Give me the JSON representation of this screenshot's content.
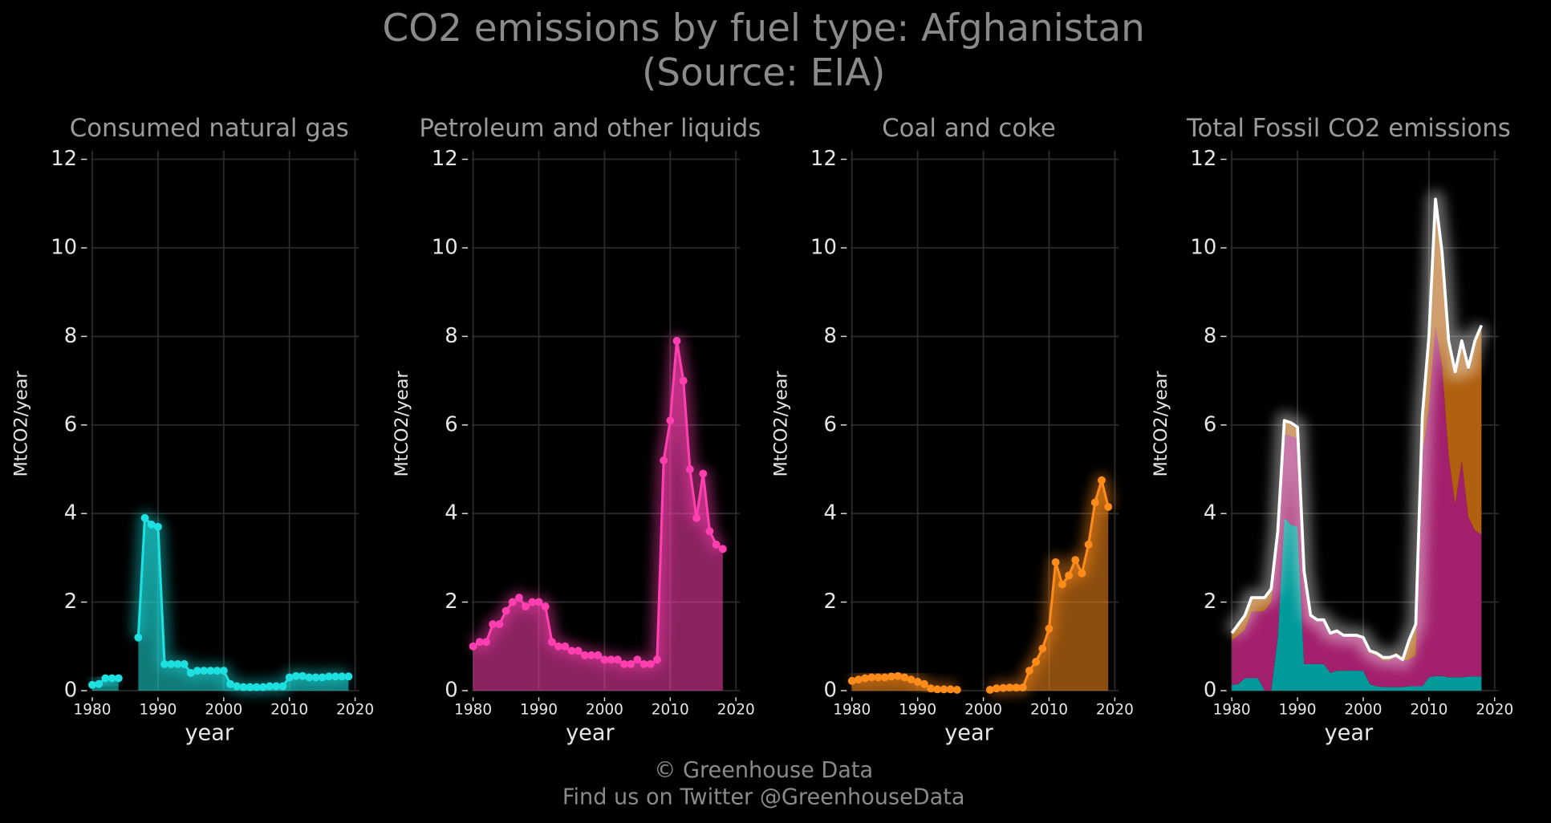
{
  "title": "CO2 emissions by fuel type: Afghanistan",
  "subtitle": "(Source: EIA)",
  "footer": [
    "© Greenhouse Data",
    "Find us on Twitter @GreenhouseData"
  ],
  "chart_data": [
    {
      "type": "area_line",
      "title": "Consumed natural gas",
      "xlabel": "year",
      "ylabel": "MtCO2/year",
      "color": "#1de0e0",
      "x": [
        1980,
        1981,
        1982,
        1983,
        1984,
        1985,
        1986,
        1987,
        1988,
        1989,
        1990,
        1991,
        1992,
        1993,
        1994,
        1995,
        1996,
        1997,
        1998,
        1999,
        2000,
        2001,
        2002,
        2003,
        2004,
        2005,
        2006,
        2007,
        2008,
        2009,
        2010,
        2011,
        2012,
        2013,
        2014,
        2015,
        2016,
        2017,
        2018,
        2019
      ],
      "values": [
        0.13,
        0.15,
        0.28,
        0.28,
        0.28,
        null,
        null,
        1.2,
        3.9,
        3.75,
        3.7,
        0.6,
        0.6,
        0.6,
        0.6,
        0.4,
        0.45,
        0.45,
        0.45,
        0.45,
        0.45,
        0.15,
        0.1,
        0.08,
        0.08,
        0.08,
        0.08,
        0.1,
        0.1,
        0.1,
        0.3,
        0.33,
        0.33,
        0.3,
        0.3,
        0.3,
        0.32,
        0.32,
        0.32,
        0.32
      ],
      "xlim": [
        1978,
        2020.6
      ],
      "xticks": [
        1980,
        1990,
        2000,
        2010,
        2020
      ],
      "ylim": [
        -0.15,
        12.2
      ],
      "yticks": [
        0,
        2,
        4,
        6,
        8,
        10,
        12
      ],
      "grid": true
    },
    {
      "type": "area_line",
      "title": "Petroleum and other liquids",
      "xlabel": "year",
      "ylabel": "MtCO2/year",
      "color": "#ff3fb0",
      "x": [
        1980,
        1981,
        1982,
        1983,
        1984,
        1985,
        1986,
        1987,
        1988,
        1989,
        1990,
        1991,
        1992,
        1993,
        1994,
        1995,
        1996,
        1997,
        1998,
        1999,
        2000,
        2001,
        2002,
        2003,
        2004,
        2005,
        2006,
        2007,
        2008,
        2009,
        2010,
        2011,
        2012,
        2013,
        2014,
        2015,
        2016,
        2017,
        2018
      ],
      "values": [
        1.0,
        1.1,
        1.1,
        1.5,
        1.5,
        1.8,
        2.0,
        2.1,
        1.9,
        2.0,
        2.0,
        1.9,
        1.1,
        1.0,
        1.0,
        0.9,
        0.9,
        0.8,
        0.8,
        0.8,
        0.7,
        0.7,
        0.7,
        0.6,
        0.6,
        0.7,
        0.6,
        0.6,
        0.7,
        5.2,
        6.1,
        7.9,
        7.0,
        5.0,
        3.9,
        4.9,
        3.6,
        3.3,
        3.2
      ],
      "xlim": [
        1978,
        2020.6
      ],
      "xticks": [
        1980,
        1990,
        2000,
        2010,
        2020
      ],
      "ylim": [
        -0.15,
        12.2
      ],
      "yticks": [
        0,
        2,
        4,
        6,
        8,
        10,
        12
      ],
      "grid": true
    },
    {
      "type": "area_line",
      "title": "Coal and coke",
      "xlabel": "year",
      "ylabel": "MtCO2/year",
      "color": "#ff8c1a",
      "x": [
        1980,
        1981,
        1982,
        1983,
        1984,
        1985,
        1986,
        1987,
        1988,
        1989,
        1990,
        1991,
        1992,
        1993,
        1994,
        1995,
        1996,
        1997,
        1998,
        1999,
        2000,
        2001,
        2002,
        2003,
        2004,
        2005,
        2006,
        2007,
        2008,
        2009,
        2010,
        2011,
        2012,
        2013,
        2014,
        2015,
        2016,
        2017,
        2018,
        2019
      ],
      "values": [
        0.22,
        0.25,
        0.28,
        0.3,
        0.3,
        0.3,
        0.32,
        0.33,
        0.3,
        0.25,
        0.2,
        0.15,
        0.05,
        0.03,
        0.03,
        0.03,
        0.02,
        null,
        null,
        null,
        null,
        0.02,
        0.05,
        0.06,
        0.07,
        0.07,
        0.07,
        0.45,
        0.65,
        0.95,
        1.4,
        2.9,
        2.4,
        2.6,
        2.95,
        2.65,
        3.3,
        4.25,
        4.75,
        4.15
      ],
      "xlim": [
        1978,
        2020.6
      ],
      "xticks": [
        1980,
        1990,
        2000,
        2010,
        2020
      ],
      "ylim": [
        -0.15,
        12.2
      ],
      "yticks": [
        0,
        2,
        4,
        6,
        8,
        10,
        12
      ],
      "grid": true
    },
    {
      "type": "stacked_total",
      "title": "Total Fossil CO2 emissions",
      "xlabel": "year",
      "ylabel": "MtCO2/year",
      "color": "#ffffff",
      "area_colors": [
        "#009a9a",
        "#a3206d",
        "#b0600f"
      ],
      "x": [
        1980,
        1981,
        1982,
        1983,
        1984,
        1985,
        1986,
        1987,
        1988,
        1989,
        1990,
        1991,
        1992,
        1993,
        1994,
        1995,
        1996,
        1997,
        1998,
        1999,
        2000,
        2001,
        2002,
        2003,
        2004,
        2005,
        2006,
        2007,
        2008,
        2009,
        2010,
        2011,
        2012,
        2013,
        2014,
        2015,
        2016,
        2017,
        2018
      ],
      "values": [
        1.3,
        1.5,
        1.7,
        2.1,
        2.1,
        2.1,
        2.3,
        3.6,
        6.1,
        6.05,
        5.95,
        2.7,
        1.7,
        1.6,
        1.6,
        1.3,
        1.35,
        1.25,
        1.25,
        1.25,
        1.2,
        0.9,
        0.85,
        0.75,
        0.75,
        0.8,
        0.7,
        1.15,
        1.5,
        6.2,
        8.0,
        11.1,
        9.9,
        7.9,
        7.2,
        7.9,
        7.3,
        7.9,
        8.25
      ],
      "xlim": [
        1978,
        2020.6
      ],
      "xticks": [
        1980,
        1990,
        2000,
        2010,
        2020
      ],
      "ylim": [
        -0.15,
        12.2
      ],
      "yticks": [
        0,
        2,
        4,
        6,
        8,
        10,
        12
      ],
      "grid": true
    }
  ]
}
